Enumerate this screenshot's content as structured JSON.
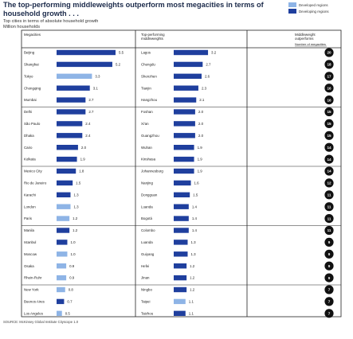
{
  "title": "The top-performing middleweights outperform most megacities in terms of household growth . . .",
  "subtitle": [
    "Top cities in terms of absolute household growth",
    "Million households"
  ],
  "legend": [
    {
      "label": "Developed regions",
      "color": "#8eb4e6"
    },
    {
      "label": "Developing regions",
      "color": "#1f3f9e"
    }
  ],
  "source": "SOURCE: McKinsey Global Institute Cityscope 1.0",
  "colors": {
    "developed": "#8eb4e6",
    "developing": "#1f3f9e",
    "circle": "#111111",
    "border": "#222222"
  },
  "chart_data": {
    "type": "table",
    "columns": {
      "megacities": "Megacities",
      "middleweights": "Top-performing middleweights",
      "count": "Middleweight outperforms",
      "count_sub": "Number of megacities"
    },
    "megacities": [
      {
        "city": "Beijing",
        "value": 5.5,
        "label": "5.5",
        "region": "developing"
      },
      {
        "city": "Shanghai",
        "value": 5.2,
        "label": "5.2",
        "region": "developing"
      },
      {
        "city": "Tokyo",
        "value": 3.3,
        "label": "3.3",
        "region": "developed"
      },
      {
        "city": "Chongqing",
        "value": 3.1,
        "label": "3.1",
        "region": "developing"
      },
      {
        "city": "Mumbai",
        "value": 2.7,
        "label": "2.7",
        "region": "developing"
      },
      {
        "city": "Delhi",
        "value": 2.7,
        "label": "2.7",
        "region": "developing"
      },
      {
        "city": "São Paulo",
        "value": 2.4,
        "label": "2.4",
        "region": "developing"
      },
      {
        "city": "Dhaka",
        "value": 2.4,
        "label": "2.4",
        "region": "developing"
      },
      {
        "city": "Cairo",
        "value": 2.0,
        "label": "2.0",
        "region": "developing"
      },
      {
        "city": "Kolkata",
        "value": 1.9,
        "label": "1.9",
        "region": "developing"
      },
      {
        "city": "Mexico City",
        "value": 1.8,
        "label": "1.8",
        "region": "developing"
      },
      {
        "city": "Rio de Janeiro",
        "value": 1.5,
        "label": "1.5",
        "region": "developing"
      },
      {
        "city": "Karachi",
        "value": 1.3,
        "label": "1.3",
        "region": "developing"
      },
      {
        "city": "London",
        "value": 1.3,
        "label": "1.3",
        "region": "developed"
      },
      {
        "city": "Paris",
        "value": 1.2,
        "label": "1.2",
        "region": "developed"
      },
      {
        "city": "Manila",
        "value": 1.2,
        "label": "1.2",
        "region": "developing"
      },
      {
        "city": "Istanbul",
        "value": 1.0,
        "label": "1.0",
        "region": "developing"
      },
      {
        "city": "Moscow",
        "value": 1.0,
        "label": "1.0",
        "region": "developed"
      },
      {
        "city": "Osaka",
        "value": 0.9,
        "label": "0.9",
        "region": "developed"
      },
      {
        "city": "Rhein-Ruhr",
        "value": 0.9,
        "label": "0.9",
        "region": "developed"
      },
      {
        "city": "New York",
        "value": 0.8,
        "label": "0.8",
        "region": "developed"
      },
      {
        "city": "Buenos Aires",
        "value": 0.7,
        "label": "0.7",
        "region": "developing"
      },
      {
        "city": "Los Angeles",
        "value": 0.5,
        "label": "0.5",
        "region": "developed"
      }
    ],
    "middleweights": [
      {
        "city": "Lagos",
        "value": 3.2,
        "label": "3.2",
        "region": "developing",
        "outperforms": 20
      },
      {
        "city": "Chengdu",
        "value": 2.7,
        "label": "2.7",
        "region": "developing",
        "outperforms": 18
      },
      {
        "city": "Shenzhen",
        "value": 2.6,
        "label": "2.6",
        "region": "developing",
        "outperforms": 17
      },
      {
        "city": "Tianjin",
        "value": 2.3,
        "label": "2.3",
        "region": "developing",
        "outperforms": 16
      },
      {
        "city": "Hangzhou",
        "value": 2.1,
        "label": "2.1",
        "region": "developing",
        "outperforms": 16
      },
      {
        "city": "Foshan",
        "value": 2.0,
        "label": "2.0",
        "region": "developing",
        "outperforms": 15
      },
      {
        "city": "Xi'an",
        "value": 2.0,
        "label": "2.0",
        "region": "developing",
        "outperforms": 15
      },
      {
        "city": "Guangzhou",
        "value": 2.0,
        "label": "2.0",
        "region": "developing",
        "outperforms": 15
      },
      {
        "city": "Wuhan",
        "value": 1.9,
        "label": "1.9",
        "region": "developing",
        "outperforms": 14
      },
      {
        "city": "Kinshasa",
        "value": 1.9,
        "label": "1.9",
        "region": "developing",
        "outperforms": 14
      },
      {
        "city": "Johannesburg",
        "value": 1.9,
        "label": "1.9",
        "region": "developing",
        "outperforms": 14
      },
      {
        "city": "Nanjing",
        "value": 1.6,
        "label": "1.6",
        "region": "developing",
        "outperforms": 12
      },
      {
        "city": "Dongguan",
        "value": 1.5,
        "label": "1.5",
        "region": "developing",
        "outperforms": 11
      },
      {
        "city": "Luanda",
        "value": 1.4,
        "label": "1.4",
        "region": "developing",
        "outperforms": 11
      },
      {
        "city": "Bogotá",
        "value": 1.4,
        "label": "1.4",
        "region": "developing",
        "outperforms": 11
      },
      {
        "city": "Colombo",
        "value": 1.4,
        "label": "1.4",
        "region": "developing",
        "outperforms": 11
      },
      {
        "city": "Luanda",
        "value": 1.3,
        "label": "1.3",
        "region": "developing",
        "outperforms": 9
      },
      {
        "city": "Guiyang",
        "value": 1.3,
        "label": "1.3",
        "region": "developing",
        "outperforms": 9
      },
      {
        "city": "Hefei",
        "value": 1.2,
        "label": "1.2",
        "region": "developing",
        "outperforms": 9
      },
      {
        "city": "Jinan",
        "value": 1.2,
        "label": "1.2",
        "region": "developing",
        "outperforms": 9
      },
      {
        "city": "Ningbo",
        "value": 1.2,
        "label": "1.2",
        "region": "developing",
        "outperforms": 7
      },
      {
        "city": "Taipei",
        "value": 1.1,
        "label": "1.1",
        "region": "developed",
        "outperforms": 7
      },
      {
        "city": "Taizhou",
        "value": 1.1,
        "label": "1.1",
        "region": "developing",
        "outperforms": 7
      }
    ],
    "scale_max": 5.5
  }
}
